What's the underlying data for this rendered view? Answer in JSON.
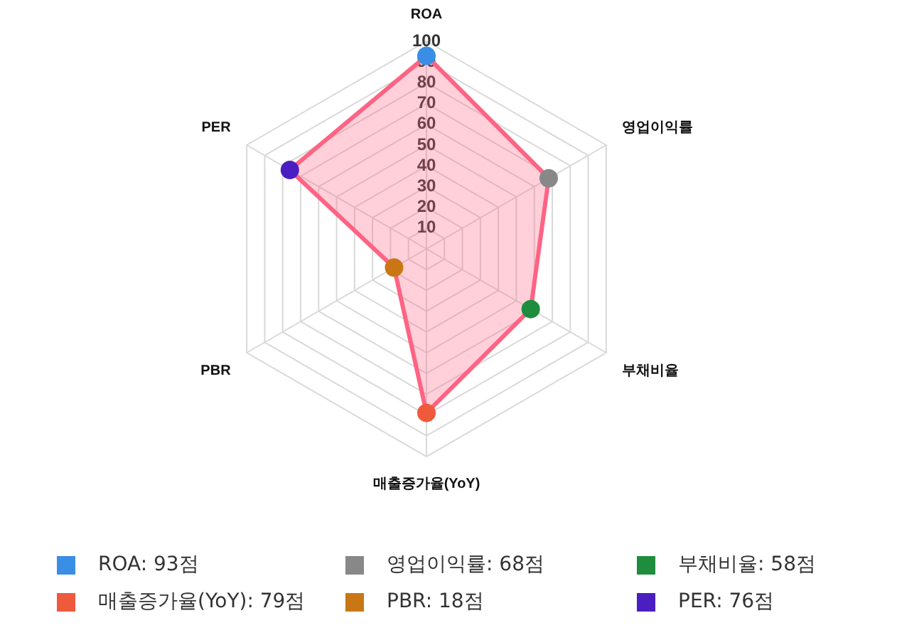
{
  "chart_data": {
    "type": "radar",
    "categories": [
      "ROA",
      "영업이익률",
      "부채비율",
      "매출증가율(YoY)",
      "PBR",
      "PER"
    ],
    "series": [
      {
        "color": "#ff6384",
        "colors": [
          "#3a8ee6",
          "#888888",
          "#1e8e3e",
          "#ef5a3c",
          "#c97716",
          "#4a1fc2"
        ],
        "values": [
          93,
          68,
          58,
          79,
          18,
          76
        ]
      }
    ],
    "ylim": [
      0,
      100
    ],
    "yticks": [
      10,
      20,
      30,
      40,
      50,
      60,
      70,
      80,
      90,
      100
    ],
    "grid": true,
    "marker": "circle",
    "annotations": [
      "ROA: 93점",
      "영업이익률: 68점",
      "부채비율: 58점",
      "매출증가율(YoY): 79점",
      "PBR: 18점",
      "PER: 76점"
    ]
  }
}
